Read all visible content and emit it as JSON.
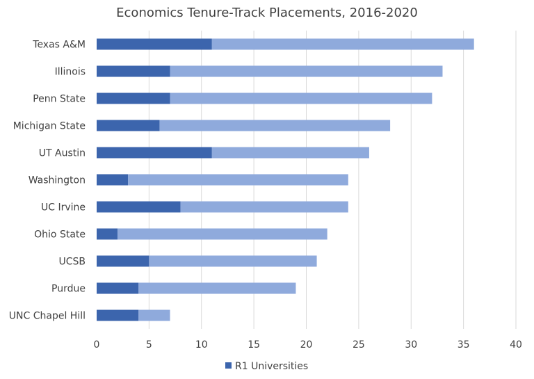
{
  "chart_data": {
    "type": "bar",
    "orientation": "horizontal",
    "stacked": true,
    "title": "Economics Tenure-Track Placements, 2016-2020",
    "categories": [
      "Texas A&M",
      "Illinois",
      "Penn State",
      "Michigan State",
      "UT Austin",
      "Washington",
      "UC Irvine",
      "Ohio State",
      "UCSB",
      "Purdue",
      "UNC Chapel Hill"
    ],
    "series": [
      {
        "name": "R1 Universities",
        "color": "#3c65ad",
        "values": [
          11,
          7,
          7,
          6,
          11,
          3,
          8,
          2,
          5,
          4,
          4
        ]
      },
      {
        "name": "",
        "color": "#8faadc",
        "values": [
          25,
          26,
          25,
          22,
          15,
          21,
          16,
          20,
          16,
          15,
          3
        ]
      }
    ],
    "xlim": [
      0,
      40
    ],
    "xticks": [
      0,
      5,
      10,
      15,
      20,
      25,
      30,
      35,
      40
    ],
    "xlabel": "",
    "ylabel": "",
    "grid": "vertical",
    "legend": {
      "position": "bottom",
      "entries": [
        "R1 Universities"
      ]
    }
  }
}
